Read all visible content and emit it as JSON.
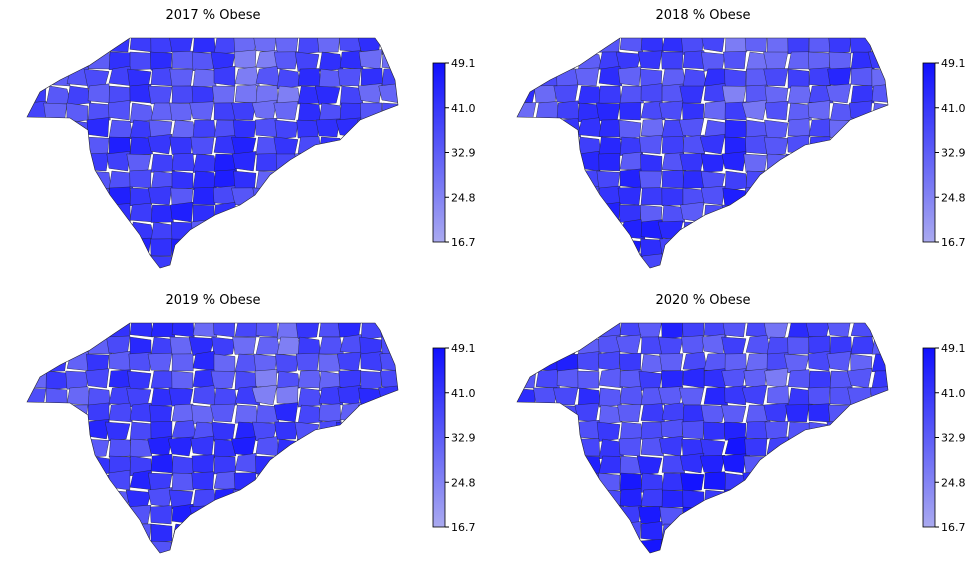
{
  "chart_data": [
    {
      "type": "heatmap",
      "subtype": "choropleth",
      "title": "2017 % Obese",
      "colorbar": {
        "ticks": [
          "16.7",
          "24.8",
          "32.9",
          "41.0",
          "49.1"
        ],
        "range": [
          16.7,
          49.1
        ]
      },
      "mean_level": 0.62
    },
    {
      "type": "heatmap",
      "subtype": "choropleth",
      "title": "2018 % Obese",
      "colorbar": {
        "ticks": [
          "16.7",
          "24.8",
          "32.9",
          "41.0",
          "49.1"
        ],
        "range": [
          16.7,
          49.1
        ]
      },
      "mean_level": 0.63
    },
    {
      "type": "heatmap",
      "subtype": "choropleth",
      "title": "2019 % Obese",
      "colorbar": {
        "ticks": [
          "16.7",
          "24.8",
          "32.9",
          "41.0",
          "49.1"
        ],
        "range": [
          16.7,
          49.1
        ]
      },
      "mean_level": 0.64
    },
    {
      "type": "heatmap",
      "subtype": "choropleth",
      "title": "2020 % Obese",
      "colorbar": {
        "ticks": [
          "16.7",
          "24.8",
          "32.9",
          "41.0",
          "49.1"
        ],
        "range": [
          16.7,
          49.1
        ]
      },
      "mean_level": 0.67
    }
  ],
  "colors": {
    "low": "#aaaaf0",
    "high": "#1010ff",
    "edge": "#222233"
  }
}
